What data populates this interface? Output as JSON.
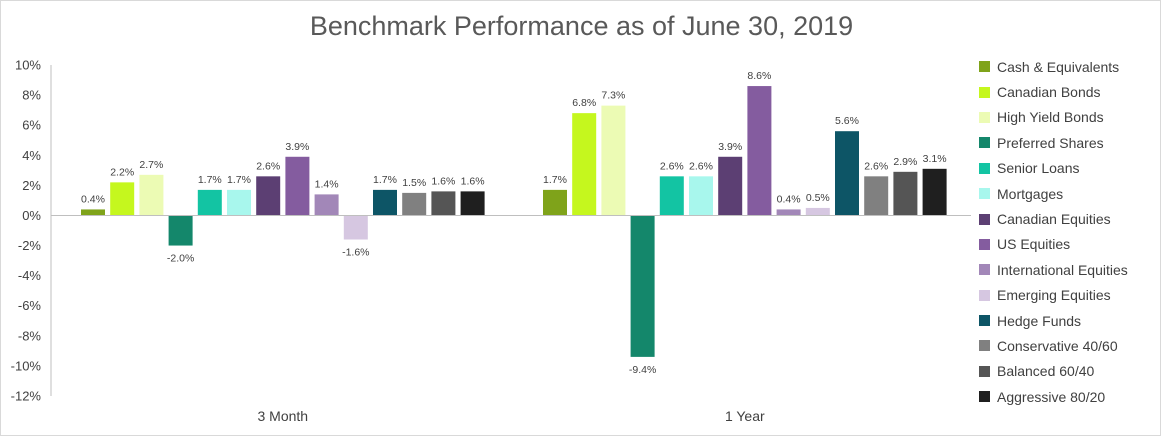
{
  "chart_data": {
    "type": "bar",
    "title": "Benchmark Performance as of June 30, 2019",
    "categories": [
      "3 Month",
      "1 Year"
    ],
    "y_ticks": [
      "10%",
      "8%",
      "6%",
      "4%",
      "2%",
      "0%",
      "-2%",
      "-4%",
      "-6%",
      "-8%",
      "-10%",
      "-12%"
    ],
    "ylim": [
      -12,
      10
    ],
    "legend_position": "right",
    "grid": false,
    "series": [
      {
        "name": "Cash & Equivalents",
        "color": "#7fa31a",
        "values": [
          0.4,
          1.7
        ],
        "labels": [
          "0.4%",
          "1.7%"
        ]
      },
      {
        "name": "Canadian Bonds",
        "color": "#c5f71e",
        "values": [
          2.2,
          6.8
        ],
        "labels": [
          "2.2%",
          "6.8%"
        ]
      },
      {
        "name": "High Yield Bonds",
        "color": "#ecfbb4",
        "values": [
          2.7,
          7.3
        ],
        "labels": [
          "2.7%",
          "7.3%"
        ]
      },
      {
        "name": "Preferred Shares",
        "color": "#14876b",
        "values": [
          -2.0,
          -9.4
        ],
        "labels": [
          "-2.0%",
          "-9.4%"
        ]
      },
      {
        "name": "Senior Loans",
        "color": "#13c4a3",
        "values": [
          1.7,
          2.6
        ],
        "labels": [
          "1.7%",
          "2.6%"
        ]
      },
      {
        "name": "Mortgages",
        "color": "#a8f7ed",
        "values": [
          1.7,
          2.6
        ],
        "labels": [
          "1.7%",
          "2.6%"
        ]
      },
      {
        "name": "Canadian Equities",
        "color": "#5c3f73",
        "values": [
          2.6,
          3.9
        ],
        "labels": [
          "2.6%",
          "3.9%"
        ]
      },
      {
        "name": "US Equities",
        "color": "#845c9f",
        "values": [
          3.9,
          8.6
        ],
        "labels": [
          "3.9%",
          "8.6%"
        ]
      },
      {
        "name": "International Equities",
        "color": "#a287b8",
        "values": [
          1.4,
          0.4
        ],
        "labels": [
          "1.4%",
          "0.4%"
        ]
      },
      {
        "name": "Emerging Equities",
        "color": "#d6c7e1",
        "values": [
          -1.6,
          0.5
        ],
        "labels": [
          "-1.6%",
          "0.5%"
        ]
      },
      {
        "name": "Hedge Funds",
        "color": "#0d5566",
        "values": [
          1.7,
          5.6
        ],
        "labels": [
          "1.7%",
          "5.6%"
        ]
      },
      {
        "name": "Conservative 40/60",
        "color": "#808080",
        "values": [
          1.5,
          2.6
        ],
        "labels": [
          "1.5%",
          "2.6%"
        ]
      },
      {
        "name": "Balanced 60/40",
        "color": "#555555",
        "values": [
          1.6,
          2.9
        ],
        "labels": [
          "1.6%",
          "2.9%"
        ]
      },
      {
        "name": "Aggressive 80/20",
        "color": "#1f1f1f",
        "values": [
          1.6,
          3.1
        ],
        "labels": [
          "1.6%",
          "3.1%"
        ]
      }
    ]
  }
}
